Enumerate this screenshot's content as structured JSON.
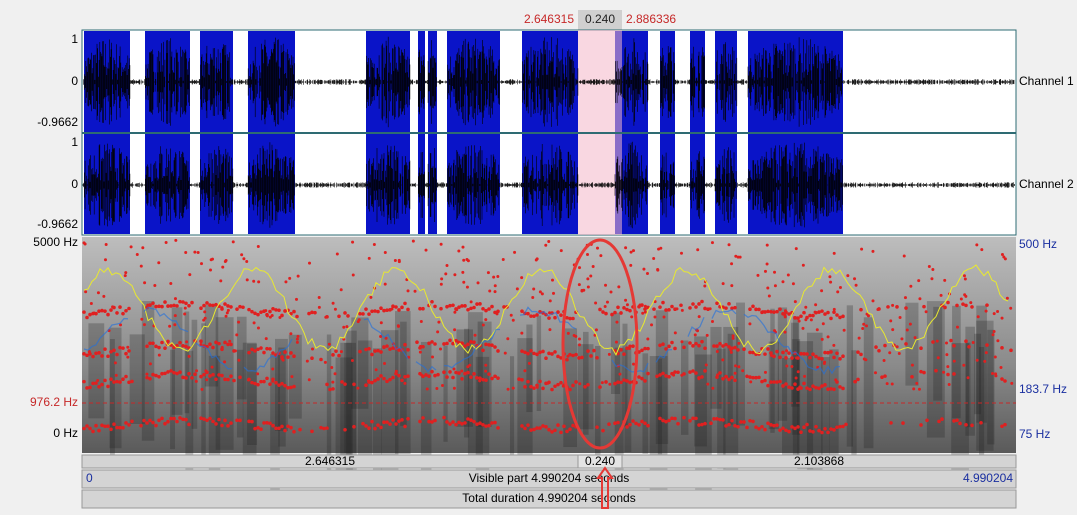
{
  "selection": {
    "start": "2.646315",
    "duration": "0.240",
    "end": "2.886336"
  },
  "channels": [
    {
      "name": "Channel 1",
      "max": "1",
      "zero": "0",
      "min": "-0.9662"
    },
    {
      "name": "Channel 2",
      "max": "1",
      "zero": "0",
      "min": "-0.9662"
    }
  ],
  "spectrogram": {
    "top": "5000 Hz",
    "cursor": "976.2 Hz",
    "bottom": "0 Hz",
    "pitch_top": "500 Hz",
    "pitch_mid": "183.7 Hz",
    "pitch_bottom": "75 Hz"
  },
  "time_bar": {
    "left": "2.646315",
    "selection": "0.240",
    "right": "2.103868"
  },
  "visible_bar": {
    "start": "0",
    "label": "Visible part 4.990204 seconds",
    "end": "4.990204"
  },
  "total_bar": {
    "label": "Total duration 4.990204 seconds"
  }
}
